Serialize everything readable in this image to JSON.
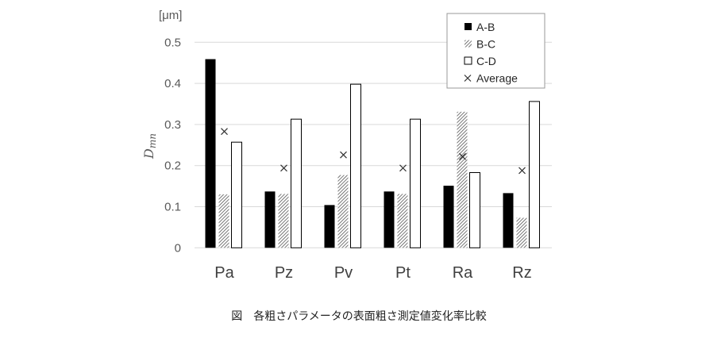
{
  "chart_data": {
    "type": "bar",
    "title": "",
    "caption": "図　各粗さパラメータの表面粗さ測定値変化率比較",
    "ylabel": "D_mn",
    "ylabel_main": "D",
    "ylabel_sub": "mn",
    "yunit": "[μm]",
    "ylim": [
      0,
      0.5
    ],
    "yticks": [
      "0",
      "0.1",
      "0.2",
      "0.3",
      "0.4",
      "0.5"
    ],
    "grid": true,
    "legend_position": "top-right",
    "categories": [
      "Pa",
      "Pz",
      "Pv",
      "Pt",
      "Ra",
      "Rz"
    ],
    "series": [
      {
        "name": "A-B",
        "style": "solid-black",
        "values": [
          0.459,
          0.137,
          0.104,
          0.137,
          0.151,
          0.133
        ]
      },
      {
        "name": "B-C",
        "style": "hatched",
        "values": [
          0.13,
          0.131,
          0.177,
          0.131,
          0.331,
          0.073
        ]
      },
      {
        "name": "C-D",
        "style": "white-outline",
        "values": [
          0.257,
          0.313,
          0.398,
          0.313,
          0.183,
          0.356
        ]
      },
      {
        "name": "Average",
        "style": "x-marker",
        "values": [
          0.283,
          0.194,
          0.226,
          0.194,
          0.222,
          0.188
        ]
      }
    ]
  }
}
